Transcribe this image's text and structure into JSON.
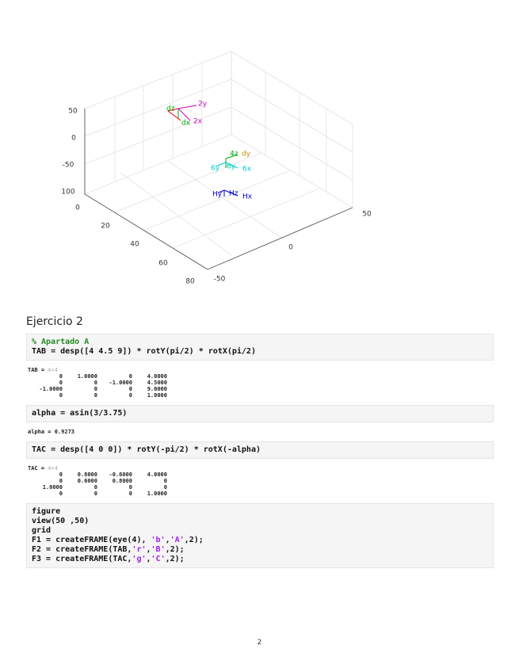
{
  "figure": {
    "z_tick_labels": [
      "50",
      "0",
      "-50",
      "100"
    ],
    "x_tick_labels": [
      "0",
      "20",
      "40",
      "60",
      "80"
    ],
    "y_tick_labels": [
      "-50",
      "0",
      "50"
    ],
    "frame_labels": [
      "dz",
      "2y",
      "2x",
      "dx",
      "4z",
      "dy",
      "6y",
      "6y",
      "6x",
      "Hy",
      "Hz",
      "Hx"
    ]
  },
  "heading": "Ejercicio 2",
  "blocks": [
    {
      "kind": "code",
      "lines": [
        [
          "% Apartado A"
        ],
        [
          "TAB = desp([4 4.5 9]) * rotY(pi/2) * rotX(pi/2)"
        ]
      ]
    },
    {
      "kind": "matrix",
      "label": "TAB =",
      "size": "4×4",
      "rows": [
        [
          "0",
          "1.0000",
          "0",
          "4.0000"
        ],
        [
          "0",
          "0",
          "-1.0000",
          "4.5000"
        ],
        [
          "-1.0000",
          "0",
          "0",
          "9.0000"
        ],
        [
          "0",
          "0",
          "0",
          "1.0000"
        ]
      ]
    },
    {
      "kind": "code",
      "lines": [
        [
          "alpha = asin(3/3.75)"
        ]
      ]
    },
    {
      "kind": "scalar",
      "text": "alpha = 0.9273"
    },
    {
      "kind": "code",
      "lines": [
        [
          "TAC = desp([4 0 0]) * rotY(-pi/2) * rotX(-alpha)"
        ]
      ]
    },
    {
      "kind": "matrix",
      "label": "TAC =",
      "size": "4×4",
      "rows": [
        [
          "0",
          "0.8000",
          "-0.6000",
          "4.0000"
        ],
        [
          "0",
          "0.6000",
          "0.8000",
          "0"
        ],
        [
          "1.0000",
          "0",
          "0",
          "0"
        ],
        [
          "0",
          "0",
          "0",
          "1.0000"
        ]
      ]
    },
    {
      "kind": "code",
      "lines": [
        [
          "figure"
        ],
        [
          "view(50 ,50)"
        ],
        [
          "grid"
        ],
        [
          "F1 = createFRAME(eye(4), ",
          "'b'",
          ",",
          "'A'",
          ",2);"
        ],
        [
          "F2 = createFRAME(TAB,",
          "'r'",
          ",",
          "'B'",
          ",2);"
        ],
        [
          "F3 = createFRAME(TAC,",
          "'g'",
          ",",
          "'C'",
          ",2);"
        ]
      ]
    }
  ],
  "page_number": "2"
}
